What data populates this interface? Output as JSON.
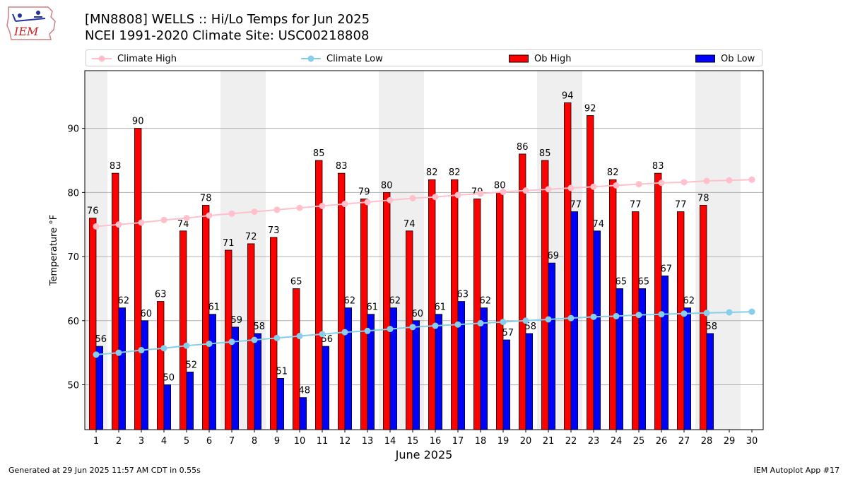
{
  "header": {
    "title_line1": "[MN8808] WELLS :: Hi/Lo Temps for Jun 2025",
    "title_line2": "NCEI 1991-2020 Climate Site: USC00218808",
    "logo_text": "IEM"
  },
  "legend": {
    "climate_high": "Climate High",
    "climate_low": "Climate Low",
    "ob_high": "Ob High",
    "ob_low": "Ob Low"
  },
  "footer": {
    "left": "Generated at 29 Jun 2025 11:57 AM CDT in 0.55s",
    "right": "IEM Autoplot App #17"
  },
  "colors": {
    "ob_high": "#ff0000",
    "ob_low": "#0000ff",
    "climate_high": "#ffc0cb",
    "climate_low": "#87ceeb",
    "weekend_shade": "#efefef",
    "grid": "#b0b0b0"
  },
  "chart_data": {
    "type": "bar",
    "xlabel": "June 2025",
    "ylabel": "Temperature °F",
    "ylim": [
      43,
      99
    ],
    "yticks": [
      50,
      60,
      70,
      80,
      90
    ],
    "grid": "horizontal",
    "legend_position": "top",
    "x": [
      1,
      2,
      3,
      4,
      5,
      6,
      7,
      8,
      9,
      10,
      11,
      12,
      13,
      14,
      15,
      16,
      17,
      18,
      19,
      20,
      21,
      22,
      23,
      24,
      25,
      26,
      27,
      28,
      29,
      30
    ],
    "weekend_days": [
      1,
      7,
      8,
      14,
      15,
      21,
      22,
      28,
      29
    ],
    "series": [
      {
        "name": "Ob High",
        "kind": "bar",
        "values": [
          76,
          83,
          90,
          63,
          74,
          78,
          71,
          72,
          73,
          65,
          85,
          83,
          79,
          80,
          74,
          82,
          82,
          79,
          80,
          86,
          85,
          94,
          92,
          82,
          77,
          83,
          77,
          78,
          null,
          null
        ]
      },
      {
        "name": "Ob Low",
        "kind": "bar",
        "values": [
          56,
          62,
          60,
          50,
          52,
          61,
          59,
          58,
          51,
          48,
          56,
          62,
          61,
          62,
          60,
          61,
          63,
          62,
          57,
          58,
          69,
          77,
          74,
          65,
          65,
          67,
          62,
          58,
          null,
          null
        ]
      },
      {
        "name": "Climate High",
        "kind": "line",
        "values": [
          74.7,
          75.0,
          75.3,
          75.7,
          76.0,
          76.4,
          76.7,
          77.0,
          77.3,
          77.6,
          77.9,
          78.2,
          78.5,
          78.8,
          79.1,
          79.3,
          79.6,
          79.8,
          80.1,
          80.3,
          80.5,
          80.7,
          80.9,
          81.1,
          81.3,
          81.5,
          81.6,
          81.8,
          81.9,
          82.0
        ]
      },
      {
        "name": "Climate Low",
        "kind": "line",
        "values": [
          54.7,
          55.0,
          55.4,
          55.7,
          56.1,
          56.4,
          56.7,
          57.0,
          57.3,
          57.6,
          57.9,
          58.2,
          58.4,
          58.7,
          59.0,
          59.2,
          59.4,
          59.6,
          59.8,
          60.0,
          60.2,
          60.4,
          60.6,
          60.7,
          60.9,
          61.0,
          61.1,
          61.2,
          61.3,
          61.4
        ]
      }
    ]
  }
}
